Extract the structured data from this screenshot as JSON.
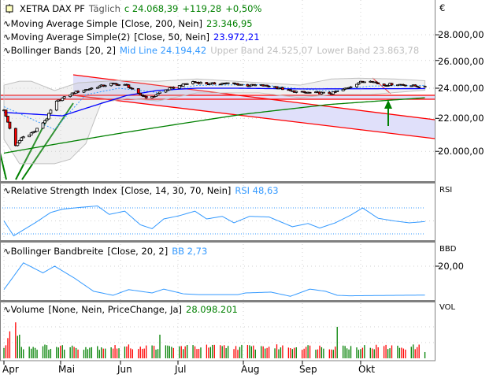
{
  "header": {
    "symbol": "XETRA DAX PF",
    "interval": "Täglich",
    "close_label": "c 24.068,39",
    "change": "+119,28",
    "change_pct": "+0,50%"
  },
  "legend": {
    "ma200": {
      "label": "Moving Average Simple",
      "params": "[Close, 200, Nein]",
      "value": "23.346,95",
      "color": "#008000"
    },
    "ma50": {
      "label": "Moving Average Simple(2)",
      "params": "[Close, 50, Nein]",
      "value": "23.972,21",
      "color": "#0000ff"
    },
    "bb": {
      "label": "Bollinger Bands",
      "params": "[20, 2]",
      "mid": "Mid Line 24.194,42",
      "upper": "Upper Band 24.525,07",
      "lower": "Lower Band 23.863,78",
      "mid_color": "#3399ff",
      "band_color": "#c0c0c0"
    },
    "rsi": {
      "label": "Relative Strength Index",
      "params": "[Close, 14, 30, 70, Nein]",
      "value": "RSI 48,63",
      "color": "#3399ff"
    },
    "bbd": {
      "label": "Bollinger Bandbreite",
      "params": "[Close, 20, 2]",
      "value": "BB 2,73",
      "color": "#3399ff"
    },
    "vol": {
      "label": "Volume",
      "params": "[None, Nein, PriceChange, Ja]",
      "value": "28.098.201",
      "color": "#008000"
    }
  },
  "axis": {
    "currency": "€",
    "price_ticks": [
      "28.000,00",
      "26.000,00",
      "24.000,00",
      "22.000,00",
      "20.000,00"
    ],
    "rsi_label": "RSI",
    "bbd_label": "BBD",
    "bbd_tick": "20,00",
    "vol_label": "VOL",
    "months": [
      "Apr",
      "Mai",
      "Jun",
      "Jul",
      "Aug",
      "Sep",
      "Okt"
    ]
  },
  "chart_data": {
    "type": "candlestick",
    "yscale": "log",
    "ylim": [
      19000,
      29000
    ],
    "price_close": [
      [
        "01.04.",
        22500
      ],
      [
        "07.04.",
        20300
      ],
      [
        "10.04.",
        20800
      ],
      [
        "17.04.",
        21200
      ],
      [
        "23.04.",
        22000
      ],
      [
        "27.04.",
        23000
      ],
      [
        "01.05.",
        23300
      ],
      [
        "07.05.",
        23700
      ],
      [
        "13.05.",
        23900
      ],
      [
        "19.05.",
        24100
      ],
      [
        "26.05.",
        24300
      ],
      [
        "03.06.",
        24200
      ],
      [
        "09.06.",
        23600
      ],
      [
        "15.06.",
        23300
      ],
      [
        "21.06.",
        23800
      ],
      [
        "01.07.",
        24200
      ],
      [
        "07.07.",
        24450
      ],
      [
        "15.07.",
        24300
      ],
      [
        "23.07.",
        24350
      ],
      [
        "29.07.",
        24300
      ],
      [
        "04.08.",
        24200
      ],
      [
        "10.08.",
        24200
      ],
      [
        "18.08.",
        24100
      ],
      [
        "26.08.",
        23800
      ],
      [
        "02.09.",
        23700
      ],
      [
        "16.09.",
        23650
      ],
      [
        "24.09.",
        24000
      ],
      [
        "30.09.",
        24400
      ],
      [
        "06.10.",
        24550
      ],
      [
        "12.10.",
        24200
      ],
      [
        "18.10.",
        24300
      ],
      [
        "26.10.",
        24200
      ],
      [
        "03.11.",
        24068
      ]
    ],
    "ma200": [
      [
        "01.04.",
        19900
      ],
      [
        "01.06.",
        21100
      ],
      [
        "01.08.",
        22250
      ],
      [
        "15.09.",
        22900
      ],
      [
        "03.11.",
        23347
      ]
    ],
    "ma50": [
      [
        "01.04.",
        22380
      ],
      [
        "01.05.",
        22160
      ],
      [
        "03.06.",
        23500
      ],
      [
        "19.06.",
        23850
      ],
      [
        "09.07.",
        24000
      ],
      [
        "29.07.",
        24000
      ],
      [
        "31.08.",
        23950
      ],
      [
        "03.11.",
        23972
      ]
    ],
    "bb_mid": [
      [
        "01.04.",
        22750
      ],
      [
        "27.04.",
        21300
      ],
      [
        "13.05.",
        23550
      ],
      [
        "30.05.",
        24000
      ],
      [
        "19.06.",
        23700
      ],
      [
        "09.07.",
        24200
      ],
      [
        "10.08.",
        24250
      ],
      [
        "31.08.",
        23950
      ],
      [
        "16.09.",
        23800
      ],
      [
        "06.10.",
        24150
      ],
      [
        "03.11.",
        24194
      ]
    ],
    "bb_upper": [
      [
        "01.04.",
        24216
      ],
      [
        "09.04.",
        24486
      ],
      [
        "15.04.",
        24486
      ],
      [
        "27.04.",
        23838
      ],
      [
        "09.05.",
        24378
      ],
      [
        "30.05.",
        24540
      ],
      [
        "19.06.",
        24486
      ],
      [
        "09.07.",
        24648
      ],
      [
        "29.07.",
        24486
      ],
      [
        "31.08.",
        24216
      ],
      [
        "16.09.",
        24648
      ],
      [
        "30.09.",
        24703
      ],
      [
        "18.10.",
        24648
      ],
      [
        "03.11.",
        24525
      ]
    ],
    "bb_lower": [
      [
        "01.04.",
        20700
      ],
      [
        "09.04.",
        19300
      ],
      [
        "27.04.",
        19300
      ],
      [
        "05.05.",
        19550
      ],
      [
        "13.05.",
        20450
      ],
      [
        "21.05.",
        23027
      ],
      [
        "03.06.",
        23297
      ],
      [
        "19.06.",
        23135
      ],
      [
        "09.07.",
        23676
      ],
      [
        "10.08.",
        23676
      ],
      [
        "31.08.",
        23351
      ],
      [
        "16.09.",
        23568
      ],
      [
        "06.10.",
        23568
      ],
      [
        "03.11.",
        23864
      ]
    ],
    "rsi": [
      [
        "01.04.",
        50
      ],
      [
        "06.04.",
        27
      ],
      [
        "17.04.",
        47
      ],
      [
        "25.04.",
        63
      ],
      [
        "01.05.",
        68
      ],
      [
        "11.05.",
        71
      ],
      [
        "19.05.",
        73
      ],
      [
        "25.05.",
        60
      ],
      [
        "02.06.",
        65
      ],
      [
        "10.06.",
        44
      ],
      [
        "16.06.",
        38
      ],
      [
        "22.06.",
        53
      ],
      [
        "30.06.",
        58
      ],
      [
        "08.07.",
        65
      ],
      [
        "14.07.",
        53
      ],
      [
        "22.07.",
        57
      ],
      [
        "28.07.",
        47
      ],
      [
        "05.08.",
        57
      ],
      [
        "15.08.",
        56
      ],
      [
        "27.08.",
        41
      ],
      [
        "04.09.",
        46
      ],
      [
        "10.09.",
        39
      ],
      [
        "18.09.",
        47
      ],
      [
        "26.09.",
        59
      ],
      [
        "02.10.",
        70
      ],
      [
        "10.10.",
        54
      ],
      [
        "18.10.",
        50
      ],
      [
        "26.10.",
        47
      ],
      [
        "03.11.",
        49
      ]
    ],
    "rsi_levels": [
      30,
      70
    ],
    "bbd": [
      [
        "01.04.",
        6
      ],
      [
        "11.04.",
        22
      ],
      [
        "21.04.",
        16
      ],
      [
        "27.04.",
        20
      ],
      [
        "07.05.",
        13
      ],
      [
        "17.05.",
        5
      ],
      [
        "27.05.",
        2.6
      ],
      [
        "04.06.",
        6
      ],
      [
        "16.06.",
        4
      ],
      [
        "22.06.",
        6.3
      ],
      [
        "02.07.",
        3.5
      ],
      [
        "10.07.",
        3
      ],
      [
        "30.07.",
        3
      ],
      [
        "03.08.",
        4
      ],
      [
        "16.08.",
        4.5
      ],
      [
        "26.08.",
        2
      ],
      [
        "05.09.",
        6.3
      ],
      [
        "13.09.",
        5
      ],
      [
        "19.09.",
        2.6
      ],
      [
        "25.09.",
        2.3
      ],
      [
        "03.11.",
        2.73
      ]
    ],
    "volume_typical": 50000000,
    "volume_spikes": [
      [
        "03.04.",
        90000000
      ],
      [
        "04.04.",
        120000000
      ],
      [
        "07.04.",
        160000000
      ],
      [
        "08.04.",
        100000000
      ],
      [
        "09.04.",
        105000000
      ],
      [
        "20.06.",
        105000000
      ],
      [
        "19.09.",
        140000000
      ],
      [
        "03.11.",
        28098201
      ]
    ]
  }
}
